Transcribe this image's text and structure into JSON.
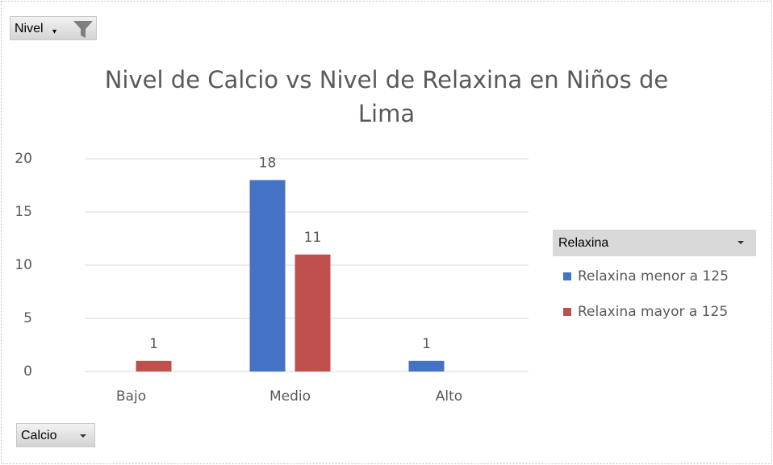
{
  "chart_data": {
    "type": "bar",
    "title": "Nivel de Calcio vs Nivel de Relaxina en Niños de Lima",
    "categories": [
      "Bajo",
      "Medio",
      "Alto"
    ],
    "series": [
      {
        "name": "Relaxina menor a 125",
        "color": "#4472c4",
        "values": [
          null,
          18,
          1
        ]
      },
      {
        "name": "Relaxina mayor a 125",
        "color": "#c0504d",
        "values": [
          1,
          11,
          null
        ]
      }
    ],
    "ylim": [
      0,
      20
    ],
    "yticks": [
      0,
      5,
      10,
      15,
      20
    ],
    "grid": true,
    "legend_title": "Relaxina",
    "legend_position": "right"
  },
  "field_buttons": {
    "filter": "Nivel",
    "axis": "Calcio"
  }
}
